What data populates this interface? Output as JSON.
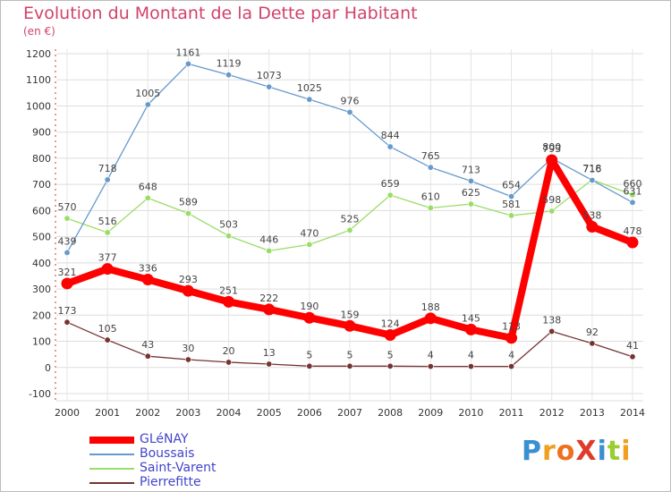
{
  "title": "Evolution du Montant de la Dette par Habitant",
  "unit": "(en €)",
  "chart_data": {
    "type": "line",
    "title": "Evolution du Montant de la Dette par Habitant",
    "ylabel": "(en €)",
    "xlabel": "",
    "x": [
      "2000",
      "2001",
      "2002",
      "2003",
      "2004",
      "2005",
      "2006",
      "2007",
      "2008",
      "2009",
      "2010",
      "2011",
      "2012",
      "2013",
      "2014"
    ],
    "ylim": [
      -100,
      1200
    ],
    "yticks": [
      -100,
      0,
      100,
      200,
      300,
      400,
      500,
      600,
      700,
      800,
      900,
      1000,
      1100,
      1200
    ],
    "grid": true,
    "legend_position": "bottom-left",
    "series": [
      {
        "name": "GLéNAY",
        "color": "#ff0000",
        "values": [
          321,
          377,
          336,
          293,
          251,
          222,
          190,
          159,
          124,
          188,
          145,
          113,
          793,
          538,
          478
        ]
      },
      {
        "name": "Boussais",
        "color": "#6699cc",
        "values": [
          439,
          718,
          1005,
          1161,
          1119,
          1073,
          1025,
          976,
          844,
          765,
          713,
          654,
          800,
          716,
          631
        ]
      },
      {
        "name": "Saint-Varent",
        "color": "#99dd66",
        "values": [
          570,
          516,
          648,
          589,
          503,
          446,
          470,
          525,
          659,
          610,
          625,
          581,
          598,
          718,
          660
        ]
      },
      {
        "name": "Pierrefitte",
        "color": "#773333",
        "values": [
          173,
          105,
          43,
          30,
          20,
          13,
          5,
          5,
          5,
          4,
          4,
          4,
          138,
          92,
          41
        ]
      }
    ]
  },
  "logo": {
    "text": "ProXiti",
    "colors": [
      "#3a8fd0",
      "#f0a020",
      "#f07020",
      "#e03a2a",
      "#3a8fd0",
      "#9acd32",
      "#f0a020"
    ]
  }
}
